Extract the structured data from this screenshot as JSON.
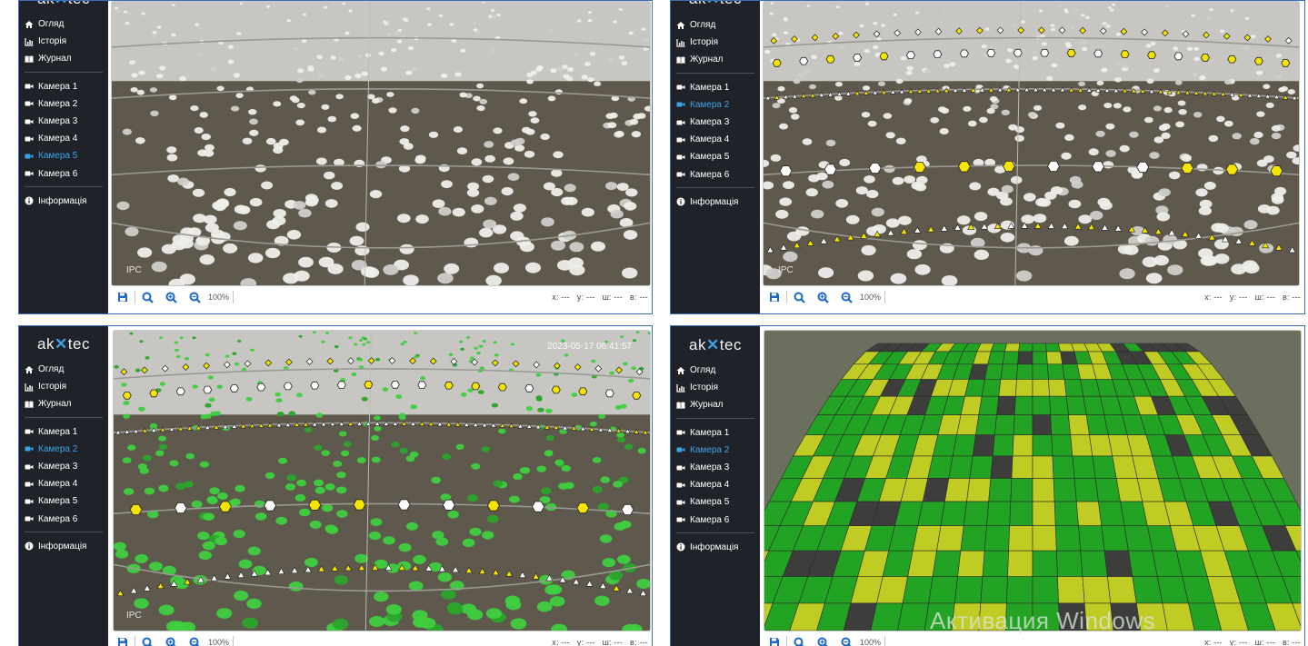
{
  "brand": {
    "logo_left": "ak",
    "logo_mark": "✕",
    "logo_right": "tec"
  },
  "nav": {
    "overview": "Огляд",
    "history": "Історія",
    "journal": "Журнал",
    "cameras": [
      "Камера 1",
      "Камера 2",
      "Камера 3",
      "Камера 4",
      "Камера 5",
      "Камера 6"
    ],
    "info": "Інформація"
  },
  "panels": [
    {
      "id": "p1",
      "active_camera": "Камера 5",
      "overlay": "none",
      "camera_label": "IPC",
      "timestamp": ""
    },
    {
      "id": "p2",
      "active_camera": "Камера 2",
      "overlay": "markers",
      "camera_label": "IPC",
      "timestamp": ""
    },
    {
      "id": "p3",
      "active_camera": "Камера 2",
      "overlay": "green-markers",
      "camera_label": "IPC",
      "timestamp": "2023-05-17 06:41:57"
    },
    {
      "id": "p4",
      "active_camera": "Камера 2",
      "overlay": "heatmap",
      "camera_label": "",
      "timestamp": ""
    }
  ],
  "toolbar": {
    "zoom_level": "100%",
    "coord_x": "x: ---",
    "coord_y": "y: ---",
    "coord_w": "ш: ---",
    "coord_h": "в: ---"
  },
  "icons": {
    "save": "floppy-disk-icon",
    "search": "magnifier-icon",
    "zoom_in": "zoom-in-icon",
    "zoom_out": "zoom-out-icon",
    "camera": "video-camera-icon",
    "home": "home-icon",
    "history": "chart-icon",
    "journal": "book-icon",
    "info": "info-circle-icon"
  },
  "colors": {
    "sidebar_bg": "#1f2329",
    "accent": "#3ba4e8",
    "panel_border": "#3d6fb6",
    "marker_yellow": "#f5e400",
    "marker_white": "#ffffff",
    "heat_green": "#1ea81e",
    "heat_yellow": "#c8d41e",
    "heat_gray": "#3a3a3a"
  },
  "system_watermark": "Активация Windows"
}
